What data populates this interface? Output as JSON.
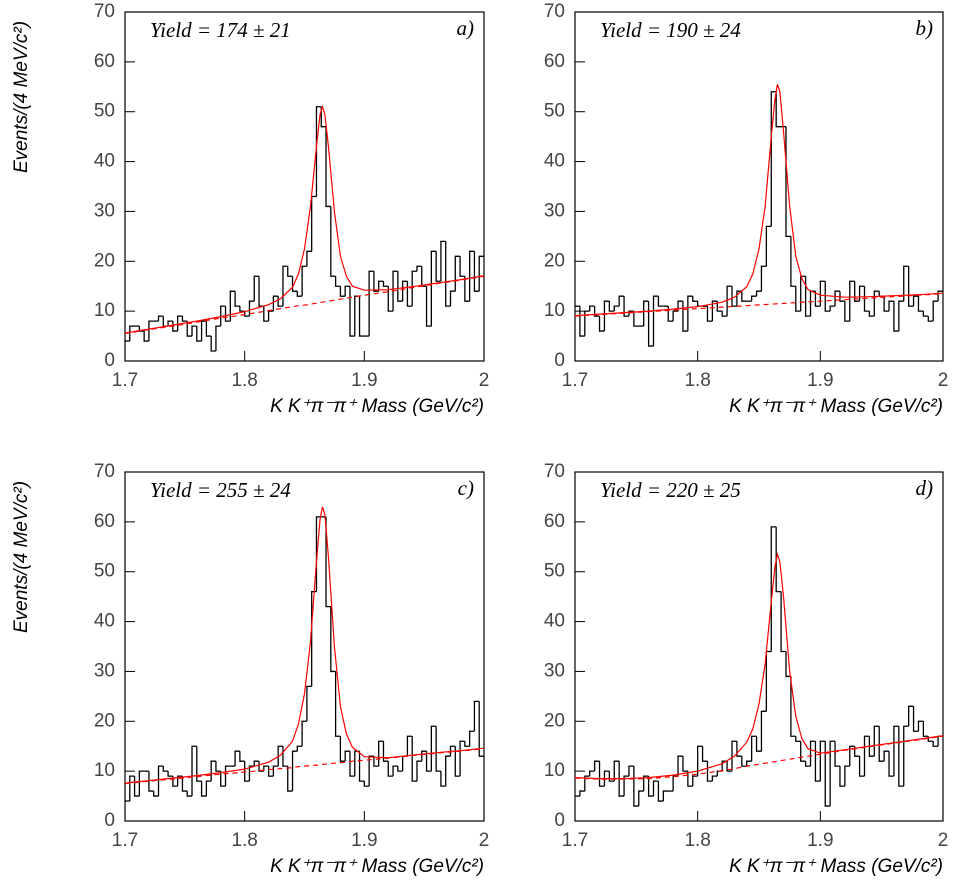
{
  "chart_data": [
    {
      "type": "histogram",
      "label": "a)",
      "annotation": "Yield = 174 ± 21",
      "y_label": "Events/(4 MeV/c²)",
      "x_label": "K K⁺π⁻π⁺ Mass  (GeV/c²)",
      "xlim": [
        1.7,
        2
      ],
      "ylim": [
        0,
        70
      ],
      "xticks": [
        1.7,
        1.8,
        1.9,
        2
      ],
      "yticks": [
        0,
        10,
        20,
        30,
        40,
        50,
        60,
        70
      ],
      "color": "#000000",
      "bins": [
        1.7,
        1.704,
        1.708,
        1.712,
        1.716,
        1.72,
        1.724,
        1.728,
        1.732,
        1.736,
        1.74,
        1.744,
        1.748,
        1.752,
        1.756,
        1.76,
        1.764,
        1.768,
        1.772,
        1.776,
        1.78,
        1.784,
        1.788,
        1.792,
        1.796,
        1.8,
        1.804,
        1.808,
        1.812,
        1.816,
        1.82,
        1.824,
        1.828,
        1.832,
        1.836,
        1.84,
        1.844,
        1.848,
        1.852,
        1.856,
        1.86,
        1.864,
        1.868,
        1.872,
        1.876,
        1.88,
        1.884,
        1.888,
        1.892,
        1.896,
        1.9,
        1.904,
        1.908,
        1.912,
        1.916,
        1.92,
        1.924,
        1.928,
        1.932,
        1.936,
        1.94,
        1.944,
        1.948,
        1.952,
        1.956,
        1.96,
        1.964,
        1.968,
        1.972,
        1.976,
        1.98,
        1.984,
        1.988,
        1.992,
        1.996,
        2
      ],
      "counts": [
        4,
        7,
        7,
        6,
        4,
        8,
        8,
        9,
        7,
        8,
        6,
        9,
        8,
        5,
        7,
        4,
        8,
        5,
        2,
        7,
        11,
        8,
        14,
        11,
        10,
        9,
        12,
        17,
        11,
        8,
        10,
        13,
        11,
        19,
        17,
        14,
        13,
        19,
        22,
        33,
        51,
        47,
        31,
        17,
        15,
        13,
        15,
        5,
        13,
        5,
        5,
        18,
        14,
        16,
        15,
        10,
        18,
        12,
        16,
        11,
        18,
        19,
        15,
        7,
        22,
        16,
        24,
        11,
        14,
        21,
        17,
        12,
        22,
        14,
        21
      ],
      "fit": {
        "color": "#ff0000",
        "x": [
          1.7,
          1.72,
          1.74,
          1.76,
          1.78,
          1.8,
          1.82,
          1.83,
          1.84,
          1.845,
          1.85,
          1.855,
          1.86,
          1.863,
          1.865,
          1.867,
          1.87,
          1.875,
          1.88,
          1.885,
          1.89,
          1.9,
          1.92,
          1.94,
          1.96,
          1.98,
          2
        ],
        "values": [
          5.6,
          6.4,
          7.2,
          8.0,
          8.9,
          9.9,
          11.3,
          12.5,
          14.8,
          17.5,
          22.5,
          31,
          43,
          49.5,
          51,
          49.5,
          43,
          30,
          21,
          17,
          15,
          14.2,
          14.3,
          14.9,
          15.6,
          16.3,
          17.1
        ]
      },
      "background": {
        "color": "#ff0000",
        "style": "dashed",
        "x": [
          1.7,
          1.72,
          1.74,
          1.76,
          1.78,
          1.8,
          1.82,
          1.83,
          1.84,
          1.845,
          1.85,
          1.855,
          1.86,
          1.863,
          1.865,
          1.867,
          1.87,
          1.875,
          1.88,
          1.885,
          1.89,
          1.9,
          1.92,
          1.94,
          1.96,
          1.98,
          2
        ],
        "values": [
          5.5,
          6.3,
          7.0,
          7.8,
          8.6,
          9.3,
          10.1,
          10.5,
          10.9,
          11.1,
          11.2,
          11.4,
          11.6,
          11.7,
          11.8,
          11.9,
          12.0,
          12.2,
          12.4,
          12.6,
          12.8,
          13.2,
          13.9,
          14.7,
          15.5,
          16.2,
          17.0
        ]
      }
    },
    {
      "type": "histogram",
      "label": "b)",
      "annotation": "Yield = 190 ± 24",
      "x_label": "K K⁺π⁻π⁺ Mass  (GeV/c²)",
      "xlim": [
        1.7,
        2
      ],
      "ylim": [
        0,
        70
      ],
      "xticks": [
        1.7,
        1.8,
        1.9,
        2
      ],
      "yticks": [
        0,
        10,
        20,
        30,
        40,
        50,
        60,
        70
      ],
      "color": "#000000",
      "bins": [
        1.7,
        1.704,
        1.708,
        1.712,
        1.716,
        1.72,
        1.724,
        1.728,
        1.732,
        1.736,
        1.74,
        1.744,
        1.748,
        1.752,
        1.756,
        1.76,
        1.764,
        1.768,
        1.772,
        1.776,
        1.78,
        1.784,
        1.788,
        1.792,
        1.796,
        1.8,
        1.804,
        1.808,
        1.812,
        1.816,
        1.82,
        1.824,
        1.828,
        1.832,
        1.836,
        1.84,
        1.844,
        1.848,
        1.852,
        1.856,
        1.86,
        1.864,
        1.868,
        1.872,
        1.876,
        1.88,
        1.884,
        1.888,
        1.892,
        1.896,
        1.9,
        1.904,
        1.908,
        1.912,
        1.916,
        1.92,
        1.924,
        1.928,
        1.932,
        1.936,
        1.94,
        1.944,
        1.948,
        1.952,
        1.956,
        1.96,
        1.964,
        1.968,
        1.972,
        1.976,
        1.98,
        1.984,
        1.988,
        1.992,
        1.996,
        2
      ],
      "counts": [
        11,
        5,
        10,
        11,
        9,
        6,
        12,
        10,
        11,
        13,
        9,
        10,
        7,
        7,
        12,
        3,
        13,
        11,
        11,
        8,
        10,
        12,
        6,
        13,
        12,
        11,
        11,
        8,
        12,
        10,
        9,
        15,
        11,
        14,
        12,
        12,
        13,
        14,
        19,
        27,
        54,
        47,
        47,
        25,
        15,
        10,
        17,
        9,
        14,
        11,
        16,
        10,
        11,
        14,
        12,
        8,
        16,
        12,
        15,
        10,
        9,
        14,
        13,
        10,
        12,
        6,
        12,
        19,
        11,
        13,
        10,
        9,
        8,
        12,
        14
      ],
      "fit": {
        "color": "#ff0000",
        "x": [
          1.7,
          1.72,
          1.74,
          1.76,
          1.78,
          1.8,
          1.82,
          1.83,
          1.84,
          1.845,
          1.85,
          1.855,
          1.86,
          1.863,
          1.865,
          1.867,
          1.87,
          1.875,
          1.88,
          1.885,
          1.89,
          1.9,
          1.92,
          1.94,
          1.96,
          1.98,
          2
        ],
        "values": [
          9.1,
          9.4,
          9.7,
          10.0,
          10.4,
          10.9,
          11.8,
          12.8,
          14.9,
          17.5,
          22.5,
          31,
          45,
          52.5,
          55.5,
          54,
          46,
          31,
          21,
          16.5,
          14.3,
          13.2,
          12.8,
          12.9,
          13.1,
          13.3,
          13.6
        ]
      },
      "background": {
        "color": "#ff0000",
        "style": "dashed",
        "x": [
          1.7,
          1.72,
          1.74,
          1.76,
          1.78,
          1.8,
          1.82,
          1.83,
          1.84,
          1.845,
          1.85,
          1.855,
          1.86,
          1.863,
          1.865,
          1.867,
          1.87,
          1.875,
          1.88,
          1.885,
          1.89,
          1.9,
          1.92,
          1.94,
          1.96,
          1.98,
          2
        ],
        "values": [
          9.0,
          9.3,
          9.6,
          9.9,
          10.2,
          10.5,
          10.8,
          10.95,
          11.1,
          11.18,
          11.25,
          11.33,
          11.4,
          11.45,
          11.48,
          11.5,
          11.55,
          11.63,
          11.7,
          11.78,
          11.85,
          12.0,
          12.3,
          12.6,
          12.9,
          13.2,
          13.5
        ]
      }
    },
    {
      "type": "histogram",
      "label": "c)",
      "annotation": "Yield = 255 ± 24",
      "y_label": "Events/(4 MeV/c²)",
      "x_label": "K K⁺π⁻π⁺ Mass  (GeV/c²)",
      "xlim": [
        1.7,
        2
      ],
      "ylim": [
        0,
        70
      ],
      "xticks": [
        1.7,
        1.8,
        1.9,
        2
      ],
      "yticks": [
        0,
        10,
        20,
        30,
        40,
        50,
        60,
        70
      ],
      "color": "#000000",
      "bins": [
        1.7,
        1.704,
        1.708,
        1.712,
        1.716,
        1.72,
        1.724,
        1.728,
        1.732,
        1.736,
        1.74,
        1.744,
        1.748,
        1.752,
        1.756,
        1.76,
        1.764,
        1.768,
        1.772,
        1.776,
        1.78,
        1.784,
        1.788,
        1.792,
        1.796,
        1.8,
        1.804,
        1.808,
        1.812,
        1.816,
        1.82,
        1.824,
        1.828,
        1.832,
        1.836,
        1.84,
        1.844,
        1.848,
        1.852,
        1.856,
        1.86,
        1.864,
        1.868,
        1.872,
        1.876,
        1.88,
        1.884,
        1.888,
        1.892,
        1.896,
        1.9,
        1.904,
        1.908,
        1.912,
        1.916,
        1.92,
        1.924,
        1.928,
        1.932,
        1.936,
        1.94,
        1.944,
        1.948,
        1.952,
        1.956,
        1.96,
        1.964,
        1.968,
        1.972,
        1.976,
        1.98,
        1.984,
        1.988,
        1.992,
        1.996,
        2
      ],
      "counts": [
        4,
        9,
        5,
        10,
        10,
        6,
        5,
        11,
        10,
        9,
        7,
        9,
        6,
        5,
        15,
        8,
        5,
        8,
        12,
        10,
        7,
        11,
        11,
        14,
        12,
        8,
        11,
        12,
        10,
        11,
        9,
        11,
        15,
        11,
        6,
        14,
        15,
        20,
        27,
        46,
        61,
        61,
        43,
        30,
        17,
        12,
        14,
        9,
        14,
        8,
        7,
        13,
        11,
        16,
        12,
        9,
        11,
        10,
        13,
        17,
        8,
        12,
        14,
        10,
        19,
        10,
        7,
        13,
        15,
        9,
        16,
        15,
        18,
        24,
        13
      ],
      "fit": {
        "color": "#ff0000",
        "x": [
          1.7,
          1.72,
          1.74,
          1.76,
          1.78,
          1.8,
          1.82,
          1.83,
          1.84,
          1.845,
          1.85,
          1.855,
          1.86,
          1.863,
          1.865,
          1.867,
          1.87,
          1.875,
          1.88,
          1.885,
          1.89,
          1.9,
          1.92,
          1.94,
          1.96,
          1.98,
          2
        ],
        "values": [
          7.6,
          8.1,
          8.6,
          9.1,
          9.7,
          10.4,
          11.8,
          13.2,
          16,
          19.5,
          25.5,
          36,
          52,
          60.5,
          63,
          61.5,
          53,
          35,
          23,
          17.5,
          14.8,
          12.9,
          12.7,
          13.2,
          13.7,
          14.1,
          14.6
        ]
      },
      "background": {
        "color": "#ff0000",
        "style": "dashed",
        "x": [
          1.7,
          1.72,
          1.74,
          1.76,
          1.78,
          1.8,
          1.82,
          1.83,
          1.84,
          1.845,
          1.85,
          1.855,
          1.86,
          1.863,
          1.865,
          1.867,
          1.87,
          1.875,
          1.88,
          1.885,
          1.89,
          1.9,
          1.92,
          1.94,
          1.96,
          1.98,
          2
        ],
        "values": [
          7.5,
          8.0,
          8.4,
          8.9,
          9.4,
          9.8,
          10.3,
          10.5,
          10.7,
          10.9,
          11.0,
          11.1,
          11.2,
          11.3,
          11.35,
          11.4,
          11.5,
          11.6,
          11.7,
          11.8,
          12.0,
          12.2,
          12.6,
          13.1,
          13.6,
          14.0,
          14.5
        ]
      }
    },
    {
      "type": "histogram",
      "label": "d)",
      "annotation": "Yield = 220 ± 25",
      "x_label": "K K⁺π⁻π⁺ Mass  (GeV/c²)",
      "xlim": [
        1.7,
        2
      ],
      "ylim": [
        0,
        70
      ],
      "xticks": [
        1.7,
        1.8,
        1.9,
        2
      ],
      "yticks": [
        0,
        10,
        20,
        30,
        40,
        50,
        60,
        70
      ],
      "color": "#000000",
      "bins": [
        1.7,
        1.704,
        1.708,
        1.712,
        1.716,
        1.72,
        1.724,
        1.728,
        1.732,
        1.736,
        1.74,
        1.744,
        1.748,
        1.752,
        1.756,
        1.76,
        1.764,
        1.768,
        1.772,
        1.776,
        1.78,
        1.784,
        1.788,
        1.792,
        1.796,
        1.8,
        1.804,
        1.808,
        1.812,
        1.816,
        1.82,
        1.824,
        1.828,
        1.832,
        1.836,
        1.84,
        1.844,
        1.848,
        1.852,
        1.856,
        1.86,
        1.864,
        1.868,
        1.872,
        1.876,
        1.88,
        1.884,
        1.888,
        1.892,
        1.896,
        1.9,
        1.904,
        1.908,
        1.912,
        1.916,
        1.92,
        1.924,
        1.928,
        1.932,
        1.936,
        1.94,
        1.944,
        1.948,
        1.952,
        1.956,
        1.96,
        1.964,
        1.968,
        1.972,
        1.976,
        1.98,
        1.984,
        1.988,
        1.992,
        1.996,
        2
      ],
      "counts": [
        5,
        6,
        9,
        10,
        12,
        7,
        10,
        8,
        12,
        5,
        9,
        11,
        3,
        6,
        9,
        5,
        8,
        4,
        6,
        6,
        9,
        13,
        10,
        7,
        9,
        15,
        12,
        8,
        9,
        10,
        12,
        10,
        16,
        13,
        11,
        12,
        17,
        14,
        22,
        34,
        59,
        46,
        34,
        29,
        17,
        16,
        12,
        11,
        16,
        8,
        16,
        3,
        16,
        11,
        7,
        11,
        15,
        13,
        9,
        17,
        13,
        19,
        12,
        14,
        9,
        19,
        7,
        19,
        23,
        18,
        20,
        17,
        16,
        15,
        17
      ],
      "fit": {
        "color": "#ff0000",
        "x": [
          1.7,
          1.72,
          1.74,
          1.76,
          1.78,
          1.8,
          1.82,
          1.83,
          1.84,
          1.845,
          1.85,
          1.855,
          1.86,
          1.863,
          1.865,
          1.867,
          1.87,
          1.875,
          1.88,
          1.885,
          1.89,
          1.9,
          1.92,
          1.94,
          1.96,
          1.98,
          2
        ],
        "values": [
          8.7,
          8.5,
          8.5,
          8.7,
          9.2,
          10.0,
          11.5,
          13.0,
          15.8,
          18.5,
          23.5,
          31.5,
          44,
          51,
          53.5,
          52,
          45,
          30,
          21,
          16.5,
          14.5,
          13.6,
          14.3,
          15.0,
          15.7,
          16.4,
          17.1
        ]
      },
      "background": {
        "color": "#ff0000",
        "style": "dashed",
        "x": [
          1.7,
          1.72,
          1.74,
          1.76,
          1.78,
          1.8,
          1.82,
          1.83,
          1.84,
          1.845,
          1.85,
          1.855,
          1.86,
          1.863,
          1.865,
          1.867,
          1.87,
          1.875,
          1.88,
          1.885,
          1.89,
          1.9,
          1.92,
          1.94,
          1.96,
          1.98,
          2
        ],
        "values": [
          8.6,
          8.4,
          8.4,
          8.5,
          8.9,
          9.4,
          10.1,
          10.5,
          11.0,
          11.2,
          11.4,
          11.6,
          11.8,
          11.9,
          12.0,
          12.1,
          12.2,
          12.4,
          12.6,
          12.8,
          13.0,
          13.4,
          14.2,
          14.9,
          15.6,
          16.3,
          17.0
        ]
      }
    }
  ]
}
